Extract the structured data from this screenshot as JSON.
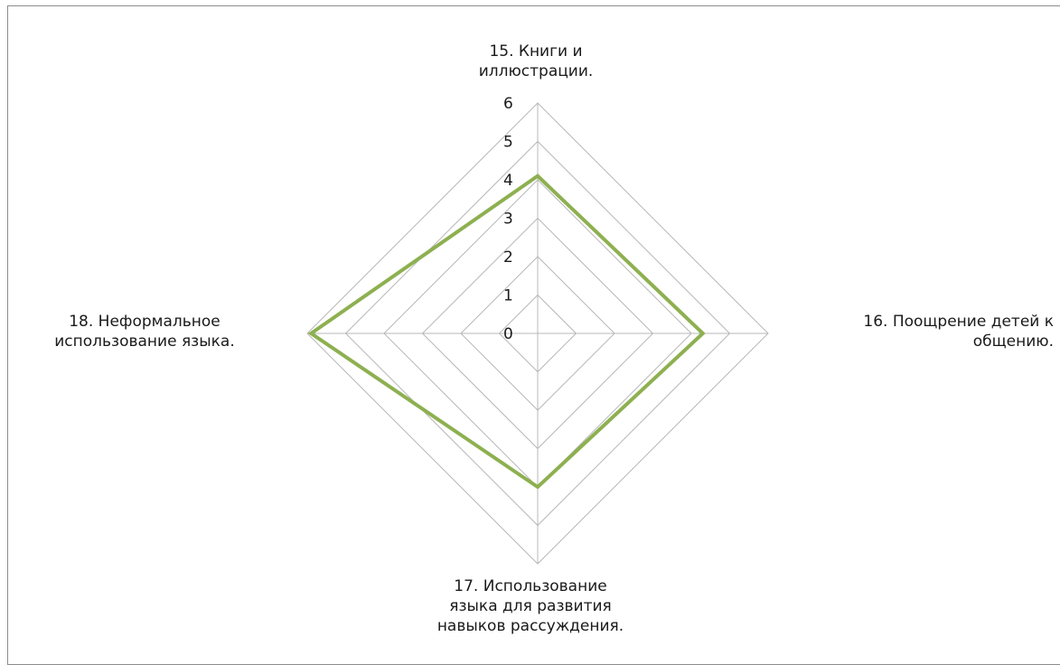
{
  "chart_data": {
    "type": "radar",
    "categories": [
      "15. Книги и иллюстрации.",
      "16. Поощрение детей к общению.",
      "17. Использование языка для развития навыков рассуждения.",
      "18. Неформальное использование языка."
    ],
    "category_lines": [
      [
        "15. Книги и",
        "иллюстрации."
      ],
      [
        "16. Поощрение детей к",
        "общению."
      ],
      [
        "17. Использование",
        "языка для развития",
        "навыков рассуждения."
      ],
      [
        "18. Неформальное",
        "использование языка."
      ]
    ],
    "series": [
      {
        "values": [
          4.1,
          4.3,
          4.0,
          5.9
        ],
        "color": "#8db050"
      }
    ],
    "rlim": [
      0,
      6
    ],
    "ticks": [
      "0",
      "1",
      "2",
      "3",
      "4",
      "5",
      "6"
    ],
    "grid": true,
    "grid_color": "#b8b8b8",
    "legend": "none"
  }
}
